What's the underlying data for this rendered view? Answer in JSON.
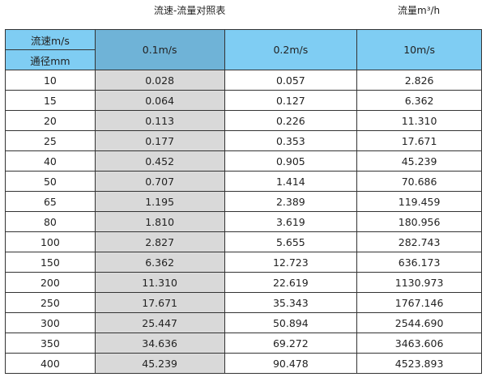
{
  "title": "流速-流量对照表",
  "unit": "流量m³/h",
  "header": {
    "velocity_label": "流速m/s",
    "diameter_label": "通径mm",
    "columns": [
      "0.1m/s",
      "0.2m/s",
      "10m/s"
    ]
  },
  "colors": {
    "header": "#7fcdf3",
    "highlight_header": "#6fb3d7",
    "highlight_column": "#d9d9d9"
  },
  "rows": [
    [
      "10",
      "0.028",
      "0.057",
      "2.826"
    ],
    [
      "15",
      "0.064",
      "0.127",
      "6.362"
    ],
    [
      "20",
      "0.113",
      "0.226",
      "11.310"
    ],
    [
      "25",
      "0.177",
      "0.353",
      "17.671"
    ],
    [
      "40",
      "0.452",
      "0.905",
      "45.239"
    ],
    [
      "50",
      "0.707",
      "1.414",
      "70.686"
    ],
    [
      "65",
      "1.195",
      "2.389",
      "119.459"
    ],
    [
      "80",
      "1.810",
      "3.619",
      "180.956"
    ],
    [
      "100",
      "2.827",
      "5.655",
      "282.743"
    ],
    [
      "150",
      "6.362",
      "12.723",
      "636.173"
    ],
    [
      "200",
      "11.310",
      "22.619",
      "1130.973"
    ],
    [
      "250",
      "17.671",
      "35.343",
      "1767.146"
    ],
    [
      "300",
      "25.447",
      "50.894",
      "2544.690"
    ],
    [
      "350",
      "34.636",
      "69.272",
      "3463.606"
    ],
    [
      "400",
      "45.239",
      "90.478",
      "4523.893"
    ]
  ]
}
